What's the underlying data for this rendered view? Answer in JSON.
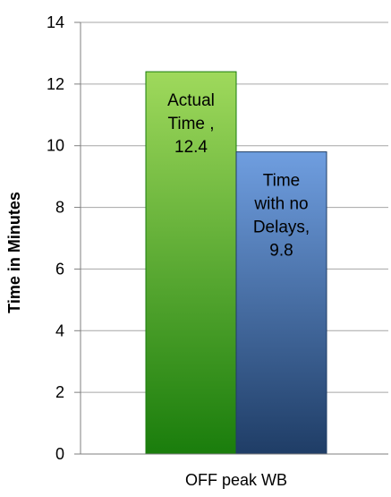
{
  "chart_data": {
    "type": "bar",
    "categories": [
      "OFF peak WB"
    ],
    "series": [
      {
        "values": [
          12.4
        ],
        "label_lines": [
          "Actual",
          "Time ,",
          "12.4"
        ],
        "color_top": "#9fd95c",
        "color_bottom": "#1a7d0c"
      },
      {
        "values": [
          9.8
        ],
        "label_lines": [
          "Time",
          "with no",
          "Delays,",
          "9.8"
        ],
        "color_top": "#6f9ee0",
        "color_bottom": "#1f3d66"
      }
    ],
    "ylabel": "Time in Minutes",
    "xlabel": "",
    "title": "",
    "ylim": [
      0,
      14
    ],
    "yticks": [
      0,
      2,
      4,
      6,
      8,
      10,
      12,
      14
    ],
    "grid": true,
    "legend": "none",
    "colors": {
      "gridline": "#a6a6a6",
      "axis": "#7f7f7f"
    }
  }
}
